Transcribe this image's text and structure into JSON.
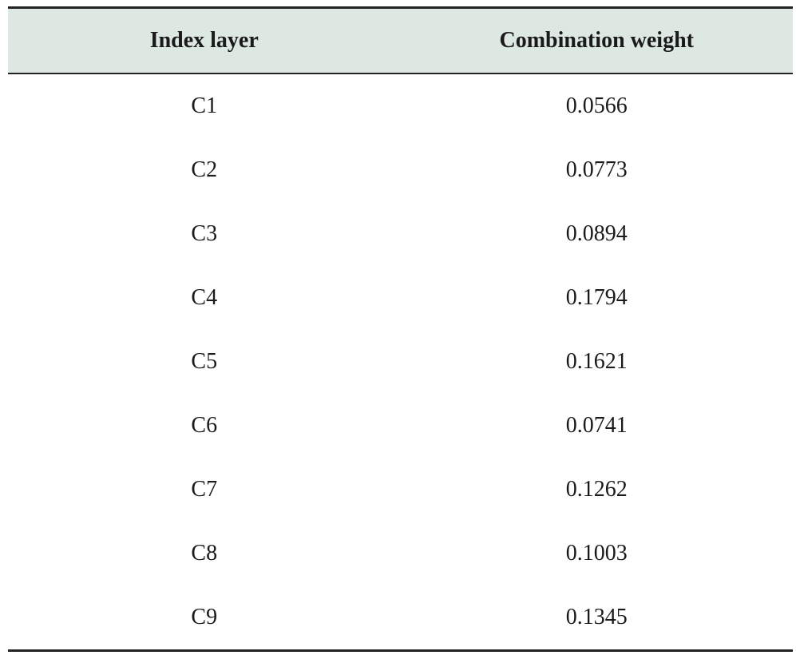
{
  "table": {
    "headers": [
      "Index layer",
      "Combination weight"
    ],
    "rows": [
      [
        "C1",
        "0.0566"
      ],
      [
        "C2",
        "0.0773"
      ],
      [
        "C3",
        "0.0894"
      ],
      [
        "C4",
        "0.1794"
      ],
      [
        "C5",
        "0.1621"
      ],
      [
        "C6",
        "0.0741"
      ],
      [
        "C7",
        "0.1262"
      ],
      [
        "C8",
        "0.1003"
      ],
      [
        "C9",
        "0.1345"
      ]
    ]
  },
  "colors": {
    "header_background": "#dde8e2",
    "rule": "#222222"
  }
}
